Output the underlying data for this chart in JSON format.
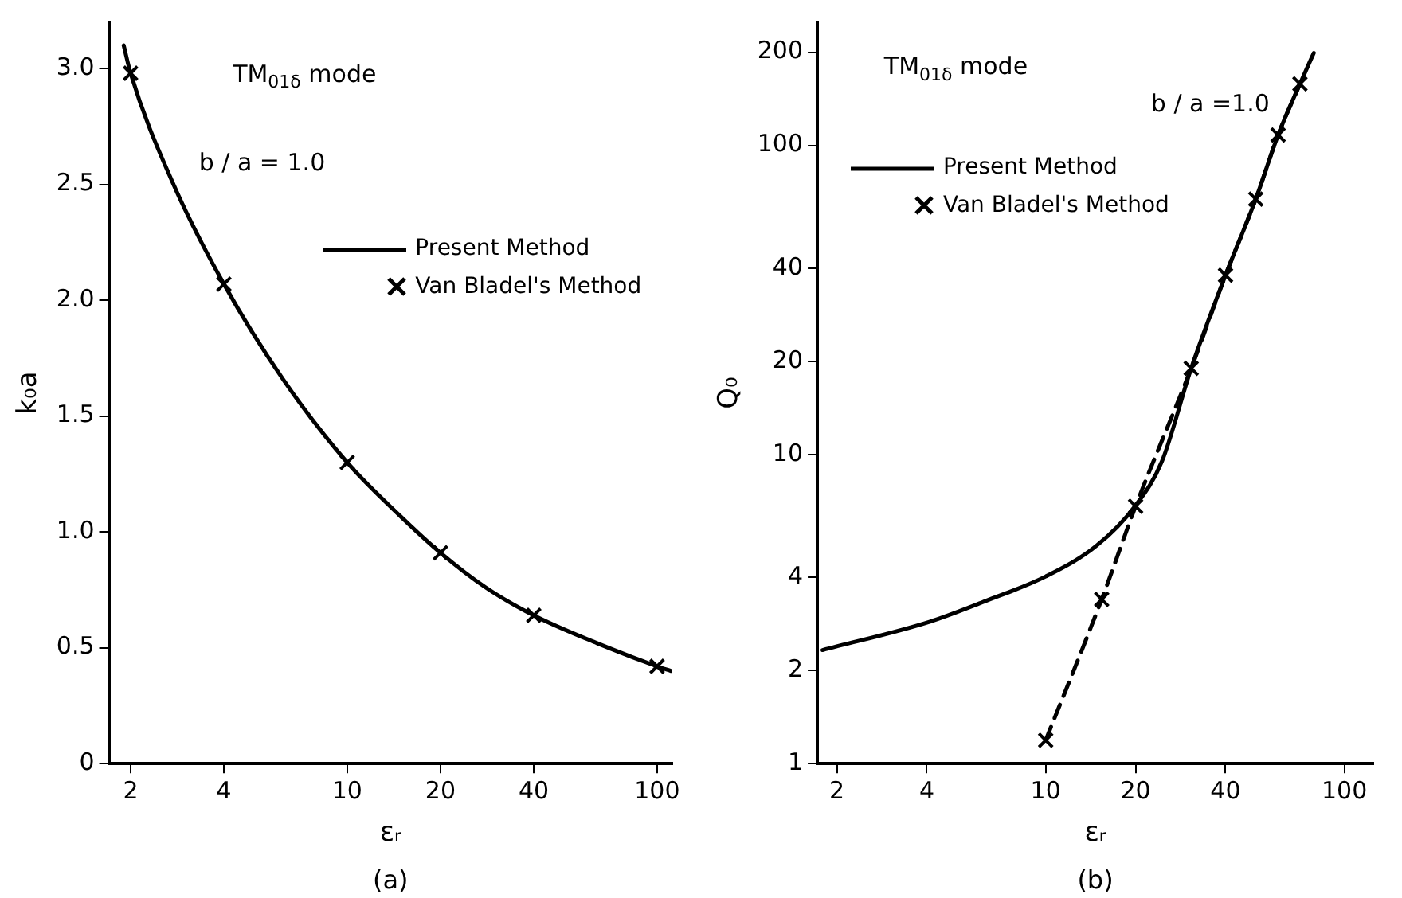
{
  "chart_data": [
    {
      "type": "line",
      "xlabel": "εᵣ",
      "ylabel": "k₀a",
      "log": "x",
      "legend": "right",
      "grid": false,
      "xlim": [
        1.7,
        112
      ],
      "xticks": [
        2,
        4,
        10,
        20,
        40,
        100
      ],
      "ylim": [
        0,
        3.2
      ],
      "yticks": [
        0,
        0.5,
        {
          "value": 1,
          "label": "1.0"
        },
        1.5,
        {
          "value": 2,
          "label": "2.0"
        },
        2.5,
        {
          "value": 3,
          "label": "3.0"
        }
      ],
      "annotations": [
        "TM$_{01δ}$ mode",
        "b / a = 1.0",
        "(a)"
      ],
      "series": [
        {
          "name": "Present Method",
          "color": "#000000",
          "marker": "none",
          "line_style": "solid",
          "x": [
            1.9,
            2,
            2.73,
            4,
            6.2,
            10,
            14.8,
            20,
            28,
            40,
            64,
            100,
            111
          ],
          "values": [
            3.1,
            2.98,
            2.51,
            2.07,
            1.66,
            1.3,
            1.07,
            0.91,
            0.76,
            0.64,
            0.52,
            0.42,
            0.4
          ]
        },
        {
          "name": "Van Bladel's Method",
          "type": "scatter",
          "color": "#000000",
          "marker": "cross",
          "x": [
            2,
            4,
            10,
            20,
            40,
            100
          ],
          "values": [
            2.98,
            2.07,
            1.3,
            0.91,
            0.64,
            0.42
          ]
        }
      ]
    },
    {
      "type": "line",
      "xlabel": "εᵣ",
      "ylabel": "Q₀",
      "log": "xy",
      "legend": "top left",
      "grid": false,
      "xlim": [
        1.72,
        125
      ],
      "xticks": [
        2,
        4,
        10,
        20,
        40,
        100
      ],
      "ylim": [
        1,
        250
      ],
      "yticks": [
        1,
        2,
        4,
        10,
        20,
        40,
        100,
        200
      ],
      "annotations": [
        "TM$_{01δ}$ mode",
        "b / a =1.0",
        "(b)"
      ],
      "series": [
        {
          "name": "Present Method",
          "color": "#000000",
          "marker": "none",
          "line_style": "solid",
          "x": [
            1.79,
            4.1,
            6.3,
            10,
            14.8,
            19.9,
            24.5,
            30.7,
            40,
            50.5,
            60,
            71,
            79
          ],
          "values": [
            2.33,
            2.88,
            3.36,
            4.03,
            5.07,
            6.8,
            9.5,
            19,
            38,
            67,
            108,
            158,
            199
          ]
        },
        {
          "name": "Van Bladel's Method",
          "type": "scatter",
          "color": "#000000",
          "marker": "cross",
          "line_style": "dashed",
          "x": [
            10,
            15.4,
            20,
            30.7,
            40,
            50.5,
            60,
            71
          ],
          "values": [
            1.19,
            3.4,
            6.8,
            19,
            38,
            67,
            108,
            158
          ]
        }
      ]
    }
  ]
}
